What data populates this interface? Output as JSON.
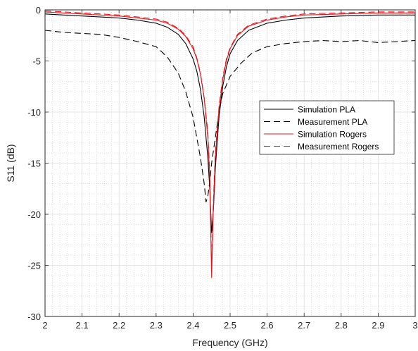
{
  "chart_data": {
    "type": "line",
    "xlabel": "Frequency (GHz)",
    "ylabel": "S11 (dB)",
    "xlim": [
      2,
      3
    ],
    "ylim": [
      -30,
      0
    ],
    "xticks": [
      2,
      2.1,
      2.2,
      2.3,
      2.4,
      2.5,
      2.6,
      2.7,
      2.8,
      2.9,
      3
    ],
    "xtick_labels": [
      "2",
      "2.1",
      "2.2",
      "2.3",
      "2.4",
      "2.5",
      "2.6",
      "2.7",
      "2.8",
      "2.9",
      "3"
    ],
    "yticks": [
      0,
      -5,
      -10,
      -15,
      -20,
      -25,
      -30
    ],
    "ytick_labels": [
      "0",
      "-5",
      "-10",
      "-15",
      "-20",
      "-25",
      "-30"
    ],
    "grid": true,
    "minor_grid": true,
    "legend_position": "right-center",
    "series": [
      {
        "name": "Simulation PLA",
        "color": "#000000",
        "dash": "solid",
        "points": [
          [
            2.0,
            -0.4
          ],
          [
            2.05,
            -0.5
          ],
          [
            2.1,
            -0.6
          ],
          [
            2.15,
            -0.7
          ],
          [
            2.2,
            -0.8
          ],
          [
            2.25,
            -1.0
          ],
          [
            2.3,
            -1.3
          ],
          [
            2.33,
            -1.7
          ],
          [
            2.36,
            -2.4
          ],
          [
            2.38,
            -3.3
          ],
          [
            2.4,
            -4.8
          ],
          [
            2.41,
            -6.0
          ],
          [
            2.42,
            -7.8
          ],
          [
            2.43,
            -10.5
          ],
          [
            2.44,
            -14.5
          ],
          [
            2.445,
            -17.5
          ],
          [
            2.45,
            -21.8
          ],
          [
            2.455,
            -19.5
          ],
          [
            2.46,
            -15.5
          ],
          [
            2.47,
            -10.5
          ],
          [
            2.48,
            -7.5
          ],
          [
            2.49,
            -5.6
          ],
          [
            2.5,
            -4.3
          ],
          [
            2.52,
            -3.0
          ],
          [
            2.55,
            -2.0
          ],
          [
            2.6,
            -1.3
          ],
          [
            2.65,
            -1.0
          ],
          [
            2.7,
            -0.8
          ],
          [
            2.8,
            -0.6
          ],
          [
            2.9,
            -0.5
          ],
          [
            3.0,
            -0.5
          ]
        ]
      },
      {
        "name": "Measurement PLA",
        "color": "#000000",
        "dash": "dashed",
        "points": [
          [
            2.0,
            -2.0
          ],
          [
            2.05,
            -2.2
          ],
          [
            2.1,
            -2.3
          ],
          [
            2.15,
            -2.4
          ],
          [
            2.2,
            -2.7
          ],
          [
            2.25,
            -3.1
          ],
          [
            2.3,
            -3.6
          ],
          [
            2.33,
            -4.6
          ],
          [
            2.36,
            -6.2
          ],
          [
            2.38,
            -8.0
          ],
          [
            2.4,
            -10.5
          ],
          [
            2.42,
            -14.5
          ],
          [
            2.43,
            -17.0
          ],
          [
            2.435,
            -18.8
          ],
          [
            2.44,
            -18.2
          ],
          [
            2.445,
            -16.8
          ],
          [
            2.45,
            -15.0
          ],
          [
            2.46,
            -12.5
          ],
          [
            2.47,
            -10.0
          ],
          [
            2.48,
            -8.2
          ],
          [
            2.5,
            -6.5
          ],
          [
            2.53,
            -5.2
          ],
          [
            2.56,
            -4.2
          ],
          [
            2.6,
            -3.6
          ],
          [
            2.65,
            -3.3
          ],
          [
            2.7,
            -3.1
          ],
          [
            2.75,
            -3.0
          ],
          [
            2.8,
            -3.1
          ],
          [
            2.85,
            -3.0
          ],
          [
            2.9,
            -3.2
          ],
          [
            2.95,
            -3.1
          ],
          [
            3.0,
            -3.0
          ]
        ]
      },
      {
        "name": "Simulation Rogers",
        "color": "#e8141c",
        "dash": "solid",
        "points": [
          [
            2.0,
            -0.2
          ],
          [
            2.05,
            -0.3
          ],
          [
            2.1,
            -0.4
          ],
          [
            2.15,
            -0.5
          ],
          [
            2.2,
            -0.6
          ],
          [
            2.25,
            -0.8
          ],
          [
            2.3,
            -1.0
          ],
          [
            2.33,
            -1.3
          ],
          [
            2.36,
            -1.9
          ],
          [
            2.38,
            -2.6
          ],
          [
            2.4,
            -3.8
          ],
          [
            2.41,
            -4.8
          ],
          [
            2.42,
            -6.3
          ],
          [
            2.43,
            -8.7
          ],
          [
            2.44,
            -12.5
          ],
          [
            2.445,
            -16.5
          ],
          [
            2.45,
            -26.2
          ],
          [
            2.455,
            -19.0
          ],
          [
            2.46,
            -14.5
          ],
          [
            2.47,
            -9.8
          ],
          [
            2.48,
            -6.8
          ],
          [
            2.49,
            -5.0
          ],
          [
            2.5,
            -3.8
          ],
          [
            2.52,
            -2.5
          ],
          [
            2.55,
            -1.6
          ],
          [
            2.6,
            -1.0
          ],
          [
            2.65,
            -0.7
          ],
          [
            2.7,
            -0.5
          ],
          [
            2.8,
            -0.4
          ],
          [
            2.9,
            -0.3
          ],
          [
            3.0,
            -0.3
          ]
        ]
      },
      {
        "name": "Measurement Rogers",
        "color": "#e8141c",
        "dash": "dashed",
        "points": [
          [
            2.0,
            -0.1
          ],
          [
            2.05,
            -0.2
          ],
          [
            2.1,
            -0.3
          ],
          [
            2.15,
            -0.4
          ],
          [
            2.2,
            -0.5
          ],
          [
            2.25,
            -0.7
          ],
          [
            2.3,
            -0.9
          ],
          [
            2.33,
            -1.2
          ],
          [
            2.36,
            -1.8
          ],
          [
            2.38,
            -2.5
          ],
          [
            2.4,
            -3.6
          ],
          [
            2.41,
            -4.7
          ],
          [
            2.42,
            -6.2
          ],
          [
            2.43,
            -8.6
          ],
          [
            2.44,
            -12.0
          ],
          [
            2.445,
            -16.0
          ],
          [
            2.45,
            -25.0
          ],
          [
            2.455,
            -18.5
          ],
          [
            2.46,
            -14.0
          ],
          [
            2.47,
            -9.5
          ],
          [
            2.48,
            -6.6
          ],
          [
            2.49,
            -4.8
          ],
          [
            2.5,
            -3.7
          ],
          [
            2.52,
            -2.4
          ],
          [
            2.55,
            -1.5
          ],
          [
            2.6,
            -0.9
          ],
          [
            2.65,
            -0.6
          ],
          [
            2.7,
            -0.4
          ],
          [
            2.8,
            -0.3
          ],
          [
            2.9,
            -0.2
          ],
          [
            3.0,
            -0.2
          ]
        ]
      }
    ]
  }
}
